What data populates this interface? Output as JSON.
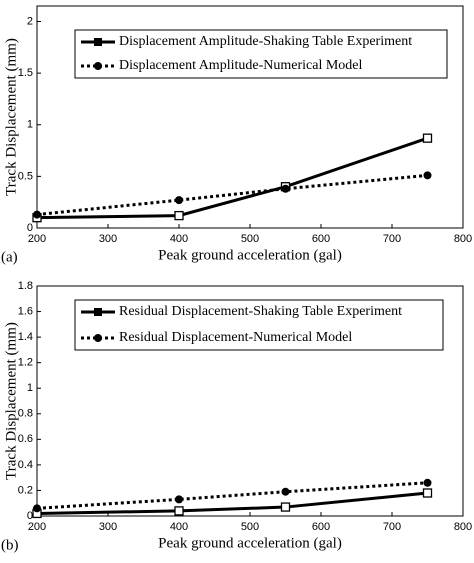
{
  "chart_data": [
    {
      "type": "line",
      "panel_label": "(a)",
      "xlabel": "Peak ground acceleration (gal)",
      "ylabel": "Track Displacement (mm)",
      "x": [
        200,
        400,
        550,
        750
      ],
      "series": [
        {
          "name": "Displacement Amplitude-Shaking Table Experiment",
          "color": "#000000",
          "marker": "square",
          "linestyle": "solid",
          "values": [
            0.1,
            0.12,
            0.4,
            0.87
          ]
        },
        {
          "name": "Displacement Amplitude-Numerical Model",
          "color": "#000000",
          "marker": "circle",
          "linestyle": "dotted",
          "values": [
            0.13,
            0.27,
            0.38,
            0.51
          ]
        }
      ],
      "xlim": [
        200,
        800
      ],
      "xticks": [
        200,
        300,
        400,
        500,
        600,
        700,
        800
      ],
      "ylim": [
        0,
        2.15
      ],
      "yticks": [
        0,
        0.5,
        1,
        1.5,
        2
      ],
      "legend": "upper left"
    },
    {
      "type": "line",
      "panel_label": "(b)",
      "xlabel": "Peak ground acceleration (gal)",
      "ylabel": "Track Displacement (mm)",
      "x": [
        200,
        400,
        550,
        750
      ],
      "series": [
        {
          "name": "Residual Displacement-Shaking Table Experiment",
          "color": "#000000",
          "marker": "square",
          "linestyle": "solid",
          "values": [
            0.02,
            0.04,
            0.07,
            0.18
          ]
        },
        {
          "name": "Residual Displacement-Numerical Model",
          "color": "#000000",
          "marker": "circle",
          "linestyle": "dotted",
          "values": [
            0.06,
            0.13,
            0.19,
            0.26
          ]
        }
      ],
      "xlim": [
        200,
        800
      ],
      "xticks": [
        200,
        300,
        400,
        500,
        600,
        700,
        800
      ],
      "ylim": [
        0,
        1.8
      ],
      "yticks": [
        0,
        0.2,
        0.4,
        0.6,
        0.8,
        1,
        1.2,
        1.4,
        1.6,
        1.8
      ],
      "legend": "upper left"
    }
  ]
}
